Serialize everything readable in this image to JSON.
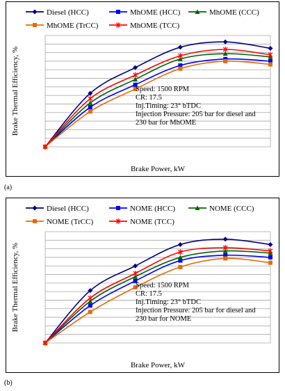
{
  "colors": {
    "diesel": "#000080",
    "hcc": "#0000ff",
    "ccc": "#006400",
    "trcc": "#e46c0a",
    "tcc": "#ff0000",
    "grid": "#a6a6a6"
  },
  "chart_data": [
    {
      "type": "line",
      "panel_label": "(a)",
      "xlabel": "Brake Power, kW",
      "ylabel": "Brake Thermal Efficiency,  %",
      "grid": "horizontal",
      "legend_position": "top",
      "x_index": [
        0,
        1,
        2,
        3,
        4,
        5
      ],
      "series": [
        {
          "name": "Diesel (HCC)",
          "marker": "diamond",
          "color": "diesel",
          "values": [
            0,
            25.0,
            37.0,
            46.5,
            49.0,
            46.0
          ]
        },
        {
          "name": "MhOME (HCC)",
          "marker": "square",
          "color": "hcc",
          "values": [
            0,
            18.5,
            29.0,
            38.0,
            41.0,
            40.0
          ]
        },
        {
          "name": "MhOME  (CCC)",
          "marker": "triangle",
          "color": "ccc",
          "values": [
            0,
            20.5,
            31.5,
            41.0,
            43.5,
            42.0
          ]
        },
        {
          "name": "MhOME (TrCC)",
          "marker": "square",
          "color": "trcc",
          "values": [
            0,
            16.5,
            27.0,
            36.5,
            40.0,
            38.5
          ]
        },
        {
          "name": "MhOME (TCC)",
          "marker": "cross",
          "color": "tcc",
          "values": [
            0,
            22.5,
            33.5,
            42.5,
            45.5,
            43.0
          ]
        }
      ],
      "annotation": [
        "Speed: 1500 RPM",
        "CR: 17.5",
        "Inj.Timing: 23° bTDC",
        "Injection Pressure:  205 bar for diesel and",
        "230 bar  for MhOME"
      ]
    },
    {
      "type": "line",
      "panel_label": "(b)",
      "xlabel": "Brake Power, kW",
      "ylabel": "Brake Thermal Efficiency,  %",
      "grid": "horizontal",
      "legend_position": "top",
      "x_index": [
        0,
        1,
        2,
        3,
        4,
        5
      ],
      "series": [
        {
          "name": "Diesel (HCC)",
          "marker": "diamond",
          "color": "diesel",
          "values": [
            0,
            24.5,
            36.0,
            46.0,
            48.5,
            46.0
          ]
        },
        {
          "name": "NOME (HCC)",
          "marker": "square",
          "color": "hcc",
          "values": [
            0,
            17.5,
            29.0,
            38.5,
            41.0,
            40.0
          ]
        },
        {
          "name": "NOME  (CCC)",
          "marker": "triangle",
          "color": "ccc",
          "values": [
            0,
            19.5,
            31.0,
            40.0,
            43.0,
            42.0
          ]
        },
        {
          "name": "NOME (TrCC)",
          "marker": "square",
          "color": "trcc",
          "values": [
            0,
            14.5,
            26.0,
            35.5,
            39.5,
            37.5
          ]
        },
        {
          "name": "NOME (TCC)",
          "marker": "cross",
          "color": "tcc",
          "values": [
            0,
            21.0,
            32.5,
            42.5,
            44.5,
            43.0
          ]
        }
      ],
      "annotation": [
        "Speed: 1500 RPM",
        "CR: 17.5",
        "Inj.Timing: 23° bTDC",
        "Injection Pressure:  205 bar for diesel and",
        "230 bar  for NOME"
      ]
    }
  ]
}
